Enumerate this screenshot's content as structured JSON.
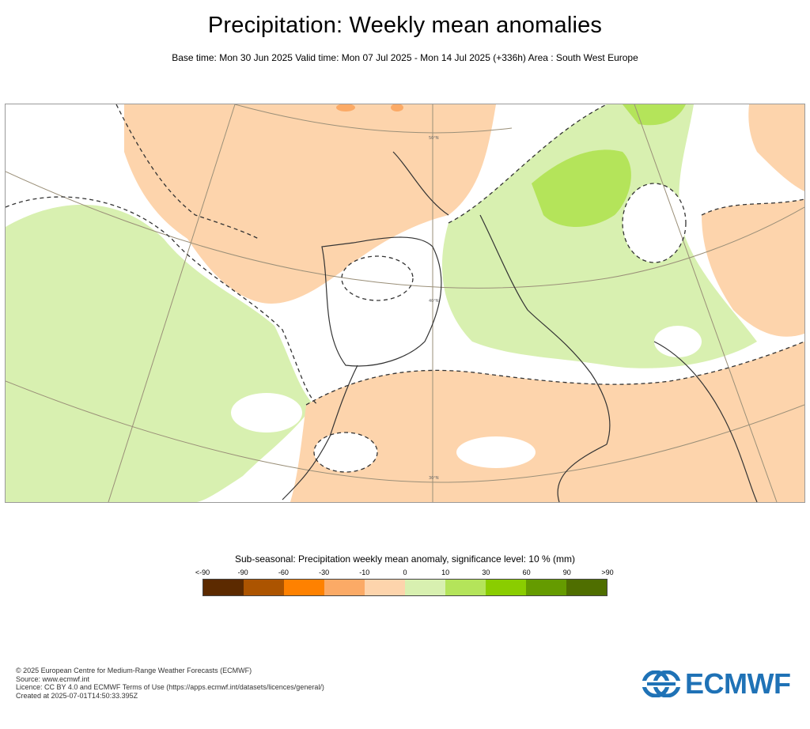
{
  "header": {
    "title": "Precipitation: Weekly mean anomalies",
    "subtitle": "Base time: Mon 30 Jun 2025 Valid time: Mon 07 Jul 2025 - Mon 14 Jul 2025 (+336h) Area : South West Europe"
  },
  "map": {
    "graticule_labels": [
      "50°N",
      "40°N",
      "30°N"
    ],
    "colors": {
      "ocean_positive": "#d8f0b0",
      "negative_light": "#fdd4ac",
      "negative_medium": "#fbaa66",
      "positive_medium": "#b4e45a",
      "no_signal": "#ffffff"
    }
  },
  "legend": {
    "title": "Sub-seasonal: Precipitation weekly mean anomaly, significance level: 10 % (mm)",
    "labels": [
      "<-90",
      "-90",
      "-60",
      "-30",
      "-10",
      "0",
      "10",
      "30",
      "60",
      "90",
      ">90"
    ],
    "colors": [
      "#5c2a00",
      "#ac5400",
      "#fe8100",
      "#fbaa66",
      "#fdd4ac",
      "#d8f0b0",
      "#b4e45a",
      "#8acd00",
      "#659b00",
      "#4f6e00"
    ]
  },
  "footer": {
    "lines": [
      "© 2025 European Centre for Medium-Range Weather Forecasts (ECMWF)",
      "Source: www.ecmwf.int",
      "Licence: CC BY 4.0 and ECMWF Terms of Use (https://apps.ecmwf.int/datasets/licences/general/)",
      "Created at 2025-07-01T14:50:33.395Z"
    ]
  },
  "logo": {
    "text": "ECMWF",
    "icon": "ecmwf-logo-icon"
  }
}
